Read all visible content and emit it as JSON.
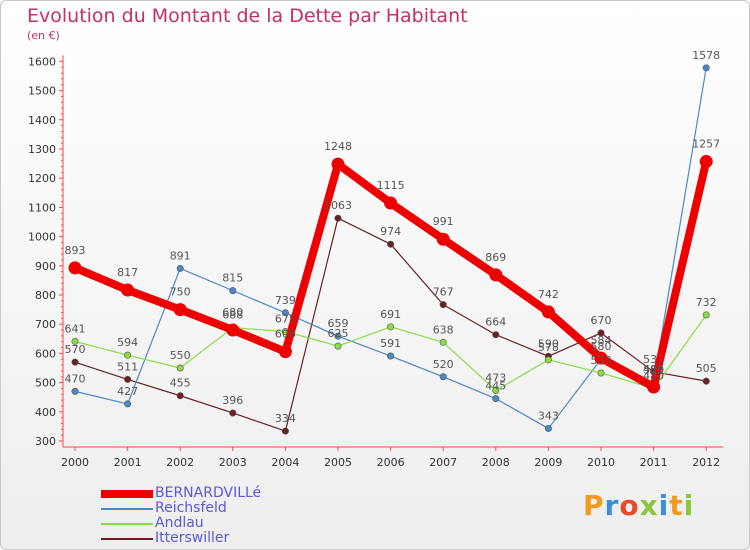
{
  "header": {
    "title": "Evolution du Montant de la Dette par Habitant",
    "subtitle": "(en €)"
  },
  "logo": {
    "text": "Proxiti"
  },
  "chart_data": {
    "type": "line",
    "title": "Evolution du Montant de la Dette par Habitant",
    "subtitle": "(en €)",
    "xlabel": "",
    "ylabel": "",
    "ylim": [
      300,
      1600
    ],
    "yticks": [
      300,
      400,
      500,
      600,
      700,
      800,
      900,
      1000,
      1100,
      1200,
      1300,
      1400,
      1500,
      1600
    ],
    "grid": false,
    "legend": "bottom-left",
    "categories": [
      "2000",
      "2001",
      "2002",
      "2003",
      "2004",
      "2005",
      "2006",
      "2007",
      "2008",
      "2009",
      "2010",
      "2011",
      "2012"
    ],
    "series": [
      {
        "name": "BERNARDVILLé",
        "color": "#ee0000",
        "values": [
          893,
          817,
          750,
          680,
          606,
          1248,
          1115,
          991,
          869,
          742,
          584,
          485,
          1257
        ]
      },
      {
        "name": "Reichsfeld",
        "color": "#4a88c8",
        "values": [
          470,
          427,
          891,
          815,
          739,
          659,
          591,
          520,
          445,
          343,
          580,
          500,
          1578
        ]
      },
      {
        "name": "Andlau",
        "color": "#88dd44",
        "values": [
          641,
          594,
          550,
          688,
          675,
          625,
          691,
          638,
          473,
          578,
          533,
          480,
          732
        ]
      },
      {
        "name": "Itterswiller",
        "color": "#6b2020",
        "values": [
          570,
          511,
          455,
          396,
          334,
          1063,
          974,
          767,
          664,
          590,
          670,
          537,
          505
        ]
      }
    ]
  }
}
